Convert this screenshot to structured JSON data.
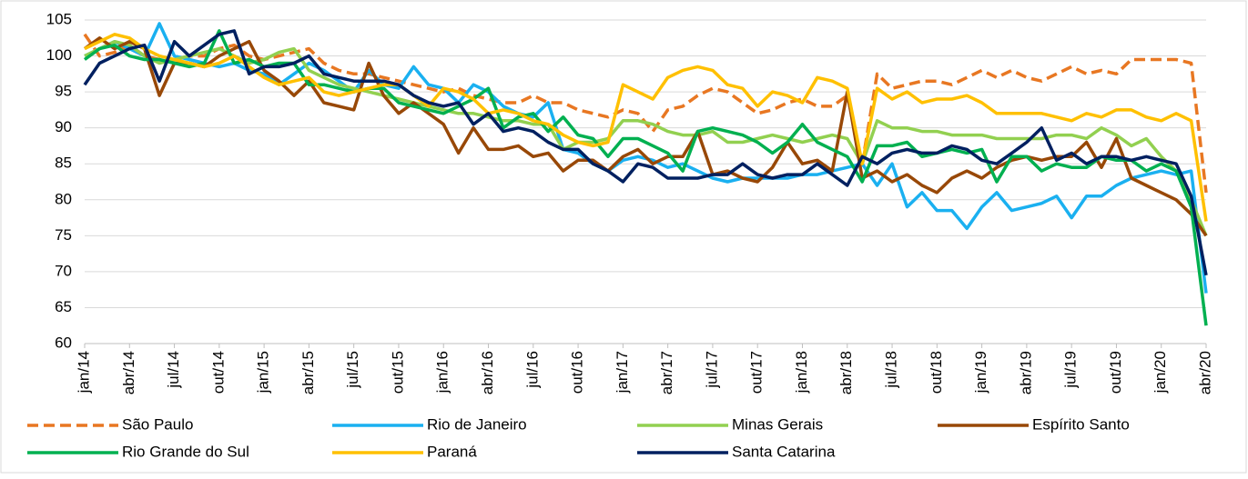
{
  "chart_data": {
    "type": "line",
    "categories": [
      "jan/14",
      null,
      null,
      "abr/14",
      null,
      null,
      "jul/14",
      null,
      null,
      "out/14",
      null,
      null,
      "jan/15",
      null,
      null,
      "abr/15",
      null,
      null,
      "jul/15",
      null,
      null,
      "out/15",
      null,
      null,
      "jan/16",
      null,
      null,
      "abr/16",
      null,
      null,
      "jul/16",
      null,
      null,
      "out/16",
      null,
      null,
      "jan/17",
      null,
      null,
      "abr/17",
      null,
      null,
      "jul/17",
      null,
      null,
      "out/17",
      null,
      null,
      "jan/18",
      null,
      null,
      "abr/18",
      null,
      null,
      "jul/18",
      null,
      null,
      "out/18",
      null,
      null,
      "jan/19",
      null,
      null,
      "abr/19",
      null,
      null,
      "jul/19",
      null,
      null,
      "out/19",
      null,
      null,
      "jan/20",
      null,
      null,
      "abr/20"
    ],
    "ylim": [
      60,
      105
    ],
    "yticks": [
      60,
      65,
      70,
      75,
      80,
      85,
      90,
      95,
      100,
      105
    ],
    "grid": true,
    "legend": "bottom",
    "series": [
      {
        "name": "São Paulo",
        "color": "#e87722",
        "line_style": "dashed",
        "values": [
          103,
          100,
          100.5,
          101.5,
          100,
          99.5,
          99.5,
          100,
          100,
          101,
          101.5,
          100,
          99.5,
          100,
          100.5,
          101,
          99,
          98,
          97.5,
          97.5,
          97,
          96.5,
          96,
          95.5,
          95,
          95.5,
          94.5,
          94,
          93.5,
          93.5,
          94.5,
          93.5,
          93.5,
          92.5,
          92,
          91.5,
          92.5,
          92,
          89.5,
          92.5,
          93,
          94.5,
          95.5,
          95,
          93.5,
          92,
          92.5,
          93.5,
          94,
          93,
          93,
          94.5,
          85,
          97.5,
          95.5,
          96,
          96.5,
          96.5,
          96,
          97,
          98,
          97,
          98,
          97,
          96.5,
          97.5,
          98.5,
          97.5,
          98,
          97.5,
          99.5,
          99.5,
          99.5,
          99.5,
          99,
          81
        ]
      },
      {
        "name": "Rio de Janeiro",
        "color": "#1ab0f0",
        "values": [
          100,
          101,
          102,
          101,
          100,
          104.5,
          100,
          99.5,
          99,
          98.5,
          99,
          98,
          97.5,
          96,
          97.5,
          99,
          98,
          96.5,
          95,
          98,
          96,
          95.5,
          98.5,
          96,
          95.5,
          93.5,
          96,
          95,
          93,
          92,
          91.5,
          93.5,
          87,
          86.5,
          85,
          84,
          85.5,
          86,
          85.5,
          84.5,
          85,
          84,
          83,
          82.5,
          83,
          83,
          83,
          83,
          83.5,
          83.5,
          84,
          84.5,
          85,
          82,
          85,
          79,
          81,
          78.5,
          78.5,
          76,
          79,
          81,
          78.5,
          79,
          79.5,
          80.5,
          77.5,
          80.5,
          80.5,
          82,
          83,
          83.5,
          84,
          83.5,
          84,
          67
        ]
      },
      {
        "name": "Minas Gerais",
        "color": "#92d050",
        "values": [
          100,
          101,
          102,
          101.5,
          100,
          99,
          99.5,
          100,
          100.5,
          101,
          100,
          99,
          99.5,
          100.5,
          101,
          98,
          97,
          96,
          95.5,
          95,
          94.5,
          94,
          93.5,
          93,
          92.5,
          92,
          92,
          91.5,
          91,
          91,
          90.5,
          90.5,
          87,
          88,
          88,
          88.5,
          91,
          91,
          90.5,
          89.5,
          89,
          89,
          89.5,
          88,
          88,
          88.5,
          89,
          88.5,
          88,
          88.5,
          89,
          88.5,
          85,
          91,
          90,
          90,
          89.5,
          89.5,
          89,
          89,
          89,
          88.5,
          88.5,
          88.5,
          88.5,
          89,
          89,
          88.5,
          90,
          89,
          87.5,
          88.5,
          86,
          84,
          80,
          75
        ]
      },
      {
        "name": "Espírito Santo",
        "color": "#984807",
        "values": [
          101,
          102.5,
          101,
          102,
          101,
          94.5,
          99,
          99,
          98.5,
          100,
          101,
          102,
          98,
          96.5,
          94.5,
          96.5,
          93.5,
          93,
          92.5,
          99,
          94.5,
          92,
          93.5,
          92,
          90.5,
          86.5,
          90,
          87,
          87,
          87.5,
          86,
          86.5,
          84,
          85.5,
          85.5,
          84,
          86,
          87,
          85,
          86,
          86,
          89.5,
          83.5,
          84,
          83,
          82.5,
          84.5,
          88,
          85,
          85.5,
          84,
          95,
          83,
          84,
          82.5,
          83.5,
          82,
          81,
          83,
          84,
          83,
          84.5,
          85.5,
          86,
          85.5,
          86,
          86,
          88,
          84.5,
          88.5,
          83,
          82,
          81,
          80,
          78,
          75
        ]
      },
      {
        "name": "Rio Grande do Sul",
        "color": "#00b050",
        "values": [
          99.5,
          101,
          101.5,
          100,
          99.5,
          99.5,
          99,
          98.5,
          99,
          103.5,
          99,
          99.5,
          98.5,
          99,
          99,
          96,
          96,
          95.5,
          95,
          95.5,
          95.5,
          93.5,
          93,
          92.5,
          92,
          93,
          94,
          95.5,
          90,
          91.5,
          92,
          89.5,
          91.5,
          89,
          88.5,
          86,
          88.5,
          88.5,
          87.5,
          86.5,
          84,
          89.5,
          90,
          89.5,
          89,
          88,
          86.5,
          88,
          90.5,
          88,
          87,
          86,
          82.5,
          87.5,
          87.5,
          88,
          86,
          86.5,
          87,
          86.5,
          87,
          82.5,
          86,
          86,
          84,
          85,
          84.5,
          84.5,
          86,
          85.5,
          85.5,
          84,
          85,
          84,
          79,
          62.5
        ]
      },
      {
        "name": "Paraná",
        "color": "#ffc000",
        "values": [
          101,
          102,
          103,
          102.5,
          101,
          100,
          99.5,
          99,
          98.5,
          99,
          100,
          98.5,
          97,
          96,
          96.5,
          97,
          95,
          94.5,
          95,
          95.5,
          96,
          96,
          94.5,
          93,
          95.5,
          95,
          94,
          92,
          92.5,
          92,
          91,
          90.5,
          89,
          88,
          87.5,
          88,
          96,
          95,
          94,
          97,
          98,
          98.5,
          98,
          96,
          95.5,
          93,
          95,
          94.5,
          93.5,
          97,
          96.5,
          95.5,
          85,
          95.5,
          94,
          95,
          93.5,
          94,
          94,
          94.5,
          93.5,
          92,
          92,
          92,
          92,
          91.5,
          91,
          92,
          91.5,
          92.5,
          92.5,
          91.5,
          91,
          92,
          91,
          77
        ]
      },
      {
        "name": "Santa Catarina",
        "color": "#002060",
        "values": [
          96,
          99,
          100,
          101,
          101.5,
          96.5,
          102,
          100,
          101.5,
          103,
          103.5,
          97.5,
          98.5,
          98.5,
          99,
          100,
          97.5,
          97,
          96.5,
          96.5,
          96.5,
          96,
          94.5,
          93.5,
          93,
          93.5,
          90.5,
          92,
          89.5,
          90,
          89.5,
          88,
          87,
          87,
          85,
          84,
          82.5,
          85,
          84.5,
          83,
          83,
          83,
          83.5,
          83.5,
          85,
          83.5,
          83,
          83.5,
          83.5,
          85,
          83.5,
          82,
          86,
          85,
          86.5,
          87,
          86.5,
          86.5,
          87.5,
          87,
          85.5,
          85,
          86.5,
          88,
          90,
          85.5,
          86.5,
          85,
          86,
          86,
          85.5,
          86,
          85.5,
          85,
          80.5,
          69.5
        ]
      }
    ]
  }
}
